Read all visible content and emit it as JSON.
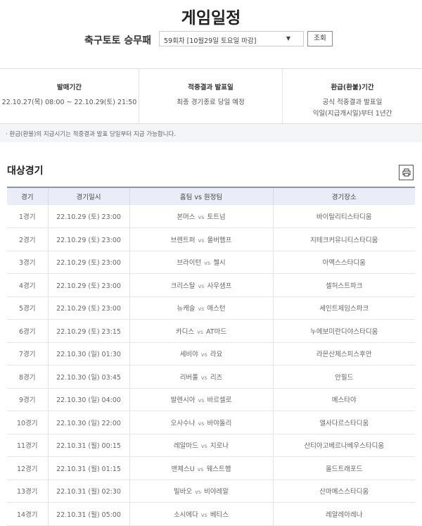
{
  "title": "게임일정",
  "selector": {
    "label": "축구토토 승무패",
    "value": "59회차 [10월29일 토요일 마감]",
    "button": "조회"
  },
  "info": [
    {
      "heading": "발매기간",
      "lines": [
        "22.10.27(목) 08:00 ~ 22.10.29(토) 21:50"
      ]
    },
    {
      "heading": "적중결과 발표일",
      "lines": [
        "최종 경기종료 당일 예정"
      ]
    },
    {
      "heading": "환급(환불)기간",
      "lines": [
        "공식 적중결과 발표일",
        "익일(지급개시일)부터 1년간"
      ]
    }
  ],
  "note": "· 환급(환불)의 지급시기는 적중결과 발표 당일부터 지급 가능합니다.",
  "section_title": "대상경기",
  "print_icon": "printer-icon",
  "table": {
    "headers": [
      "경기",
      "경기일시",
      "홈팀 vs 원정팀",
      "경기장소"
    ],
    "vs": "vs",
    "rows": [
      [
        "1경기",
        "22.10.29 (토) 23:00",
        "본머스",
        "토트넘",
        "바이탈리티스타디움"
      ],
      [
        "2경기",
        "22.10.29 (토) 23:00",
        "브렌트퍼",
        "울버햄프",
        "지테크커뮤니티스타디움"
      ],
      [
        "3경기",
        "22.10.29 (토) 23:00",
        "브라이턴",
        "첼시",
        "아멕스스타디움"
      ],
      [
        "4경기",
        "22.10.29 (토) 23:00",
        "크리스탈",
        "사우샘프",
        "셀허스트파크"
      ],
      [
        "5경기",
        "22.10.29 (토) 23:00",
        "뉴캐슬",
        "애스턴",
        "세인트제임스파크"
      ],
      [
        "6경기",
        "22.10.29 (토) 23:15",
        "카디스",
        "AT마드",
        "누에보미란디야스타디움"
      ],
      [
        "7경기",
        "22.10.30 (일) 01:30",
        "세비야",
        "라요",
        "라몬산체스피스후안"
      ],
      [
        "8경기",
        "22.10.30 (일) 03:45",
        "리버풀",
        "리즈",
        "안필드"
      ],
      [
        "9경기",
        "22.10.30 (일) 04:00",
        "발렌시아",
        "바르셀로",
        "메스타야"
      ],
      [
        "10경기",
        "22.10.30 (일) 22:00",
        "오사수나",
        "바야돌리",
        "엘사다르스타디움"
      ],
      [
        "11경기",
        "22.10.31 (월) 00:15",
        "레알마드",
        "지로나",
        "산티아고베르나베우스타디움"
      ],
      [
        "12경기",
        "22.10.31 (월) 01:15",
        "맨체스U",
        "웨스트햄",
        "올드트래포드"
      ],
      [
        "13경기",
        "22.10.31 (월) 02:30",
        "빌바오",
        "비야레알",
        "산마메스스타디움"
      ],
      [
        "14경기",
        "22.10.31 (월) 05:00",
        "소시에다",
        "베티스",
        "레알레아레나"
      ]
    ]
  }
}
